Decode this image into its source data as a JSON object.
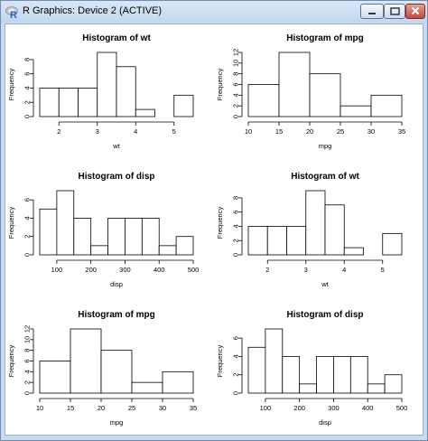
{
  "window": {
    "title": "R Graphics: Device 2 (ACTIVE)",
    "icon": "r-logo-icon",
    "controls": [
      "minimize-icon",
      "maximize-icon",
      "close-icon"
    ]
  },
  "chart_data": [
    {
      "type": "bar",
      "title": "Histogram of wt",
      "xlabel": "wt",
      "ylabel": "Frequency",
      "bin_edges": [
        1.5,
        2,
        2.5,
        3,
        3.5,
        4,
        4.5,
        5,
        5.5
      ],
      "values": [
        4,
        4,
        4,
        9,
        7,
        1,
        0,
        3
      ],
      "x_ticks": [
        2,
        3,
        4,
        5
      ],
      "y_ticks": [
        0,
        2,
        4,
        6,
        8
      ],
      "ylim": [
        0,
        9
      ]
    },
    {
      "type": "bar",
      "title": "Histogram of mpg",
      "xlabel": "mpg",
      "ylabel": "Frequency",
      "bin_edges": [
        10,
        15,
        20,
        25,
        30,
        35
      ],
      "values": [
        6,
        12,
        8,
        2,
        4
      ],
      "x_ticks": [
        10,
        15,
        20,
        25,
        30,
        35
      ],
      "y_ticks": [
        0,
        2,
        4,
        6,
        8,
        10,
        12
      ],
      "ylim": [
        0,
        12
      ]
    },
    {
      "type": "bar",
      "title": "Histogram of disp",
      "xlabel": "disp",
      "ylabel": "Frequency",
      "bin_edges": [
        50,
        100,
        150,
        200,
        250,
        300,
        350,
        400,
        450,
        500
      ],
      "values": [
        5,
        7,
        4,
        1,
        4,
        4,
        4,
        1,
        2
      ],
      "x_ticks": [
        100,
        200,
        300,
        400,
        500
      ],
      "y_ticks": [
        0,
        2,
        4,
        6
      ],
      "ylim": [
        0,
        7
      ]
    },
    {
      "type": "bar",
      "title": "Histogram of wt",
      "xlabel": "wt",
      "ylabel": "Frequency",
      "bin_edges": [
        1.5,
        2,
        2.5,
        3,
        3.5,
        4,
        4.5,
        5,
        5.5
      ],
      "values": [
        4,
        4,
        4,
        9,
        7,
        1,
        0,
        3
      ],
      "x_ticks": [
        2,
        3,
        4,
        5
      ],
      "y_ticks": [
        0,
        2,
        4,
        6,
        8
      ],
      "ylim": [
        0,
        9
      ]
    },
    {
      "type": "bar",
      "title": "Histogram of mpg",
      "xlabel": "mpg",
      "ylabel": "Frequency",
      "bin_edges": [
        10,
        15,
        20,
        25,
        30,
        35
      ],
      "values": [
        6,
        12,
        8,
        2,
        4
      ],
      "x_ticks": [
        10,
        15,
        20,
        25,
        30,
        35
      ],
      "y_ticks": [
        0,
        2,
        4,
        6,
        8,
        10,
        12
      ],
      "ylim": [
        0,
        12
      ]
    },
    {
      "type": "bar",
      "title": "Histogram of disp",
      "xlabel": "disp",
      "ylabel": "Frequency",
      "bin_edges": [
        50,
        100,
        150,
        200,
        250,
        300,
        350,
        400,
        450,
        500
      ],
      "values": [
        5,
        7,
        4,
        1,
        4,
        4,
        4,
        1,
        2
      ],
      "x_ticks": [
        100,
        200,
        300,
        400,
        500
      ],
      "y_ticks": [
        0,
        2,
        4,
        6
      ],
      "ylim": [
        0,
        7
      ]
    }
  ]
}
